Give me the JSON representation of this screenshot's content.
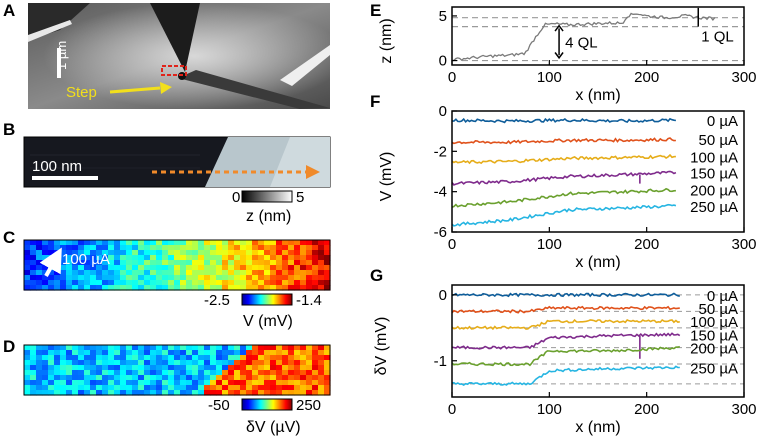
{
  "panel_labels": [
    "A",
    "B",
    "C",
    "D",
    "E",
    "F",
    "G"
  ],
  "panel_a": {
    "scale_label": "1 µm",
    "step_label": "Step",
    "colors": {
      "bg": "#6e6e6e",
      "step": "#f2df1b",
      "box": "#e0241b"
    }
  },
  "panel_b": {
    "scale_label": "100 nm",
    "colorbar": {
      "min": "0",
      "max": "5",
      "label": "z (nm)"
    },
    "colors": {
      "arrow": "#f08a2a"
    }
  },
  "panel_c": {
    "current_label": "100 µA",
    "colorbar": {
      "min": "-2.5",
      "max": "-1.4",
      "label": "V (mV)"
    }
  },
  "panel_d": {
    "colorbar": {
      "min": "-50",
      "max": "250",
      "label": "δV (µV)"
    }
  },
  "chart_data": [
    {
      "panel": "E",
      "type": "line",
      "xlabel": "x (nm)",
      "ylabel": "z (nm)",
      "xlim": [
        0,
        300
      ],
      "ylim": [
        -0.5,
        6
      ],
      "xticks": [
        "0",
        "100",
        "200",
        "300"
      ],
      "yticks": [
        "0",
        "5"
      ],
      "reference_lines": [
        0,
        3.8,
        4.8
      ],
      "annotations": [
        "4 QL",
        "1 QL"
      ],
      "series": [
        {
          "name": "profile",
          "color": "#7a7a7a",
          "x": [
            0,
            20,
            40,
            60,
            75,
            85,
            95,
            105,
            120,
            140,
            160,
            175,
            180,
            190,
            200,
            220,
            240,
            255,
            270
          ],
          "y": [
            0.1,
            0.3,
            0.5,
            0.6,
            0.8,
            2.5,
            4.0,
            4.1,
            4.0,
            4.1,
            4.2,
            4.2,
            5.0,
            5.3,
            5.0,
            4.8,
            5.0,
            4.8,
            4.7
          ]
        }
      ]
    },
    {
      "panel": "F",
      "type": "line",
      "xlabel": "x (nm)",
      "ylabel": "V (mV)",
      "xlim": [
        0,
        300
      ],
      "ylim": [
        -6,
        0
      ],
      "xticks": [
        "0",
        "100",
        "200",
        "300"
      ],
      "yticks": [
        "0",
        "-2",
        "-4",
        "-6"
      ],
      "legend_position": "right",
      "series": [
        {
          "name": "0 µA",
          "color": "#0e5d9a",
          "x": [
            0,
            60,
            120,
            180,
            230
          ],
          "y": [
            -0.45,
            -0.5,
            -0.45,
            -0.5,
            -0.45
          ]
        },
        {
          "name": "50 µA",
          "color": "#e0521c",
          "x": [
            0,
            60,
            120,
            180,
            230
          ],
          "y": [
            -1.55,
            -1.55,
            -1.45,
            -1.45,
            -1.4
          ]
        },
        {
          "name": "100 µA",
          "color": "#e6ad1a",
          "x": [
            0,
            60,
            120,
            180,
            230
          ],
          "y": [
            -2.55,
            -2.5,
            -2.35,
            -2.3,
            -2.25
          ]
        },
        {
          "name": "150 µA",
          "color": "#7f2b8c",
          "x": [
            0,
            60,
            120,
            180,
            230
          ],
          "y": [
            -3.6,
            -3.5,
            -3.25,
            -3.15,
            -3.05
          ]
        },
        {
          "name": "200 µA",
          "color": "#6aa02e",
          "x": [
            0,
            60,
            120,
            180,
            230
          ],
          "y": [
            -4.7,
            -4.5,
            -4.1,
            -4.0,
            -3.9
          ]
        },
        {
          "name": "250 µA",
          "color": "#26b5e2",
          "x": [
            0,
            60,
            120,
            180,
            230
          ],
          "y": [
            -5.65,
            -5.4,
            -4.9,
            -4.8,
            -4.7
          ]
        }
      ]
    },
    {
      "panel": "G",
      "type": "line",
      "xlabel": "x (nm)",
      "ylabel": "δV (mV)",
      "xlim": [
        0,
        300
      ],
      "ylim": [
        -1.55,
        0.15
      ],
      "xticks": [
        "0",
        "100",
        "200",
        "300"
      ],
      "yticks": [
        "0",
        "-1"
      ],
      "legend_position": "right",
      "series": [
        {
          "name": "0 µA",
          "color": "#0e5d9a",
          "x": [
            0,
            80,
            100,
            160,
            235
          ],
          "y": [
            0.0,
            0.0,
            0.0,
            0.0,
            0.0
          ]
        },
        {
          "name": "50 µA",
          "color": "#e0521c",
          "x": [
            0,
            80,
            100,
            160,
            235
          ],
          "y": [
            -0.25,
            -0.25,
            -0.2,
            -0.2,
            -0.2
          ]
        },
        {
          "name": "100 µA",
          "color": "#e6ad1a",
          "x": [
            0,
            80,
            100,
            160,
            235
          ],
          "y": [
            -0.5,
            -0.5,
            -0.4,
            -0.4,
            -0.4
          ]
        },
        {
          "name": "150 µA",
          "color": "#7f2b8c",
          "x": [
            0,
            80,
            100,
            160,
            235
          ],
          "y": [
            -0.8,
            -0.8,
            -0.65,
            -0.62,
            -0.6
          ]
        },
        {
          "name": "200 µA",
          "color": "#6aa02e",
          "x": [
            0,
            80,
            100,
            160,
            235
          ],
          "y": [
            -1.05,
            -1.05,
            -0.85,
            -0.85,
            -0.8
          ]
        },
        {
          "name": "250 µA",
          "color": "#26b5e2",
          "x": [
            0,
            80,
            100,
            160,
            235
          ],
          "y": [
            -1.35,
            -1.35,
            -1.15,
            -1.12,
            -1.1
          ]
        }
      ]
    }
  ]
}
